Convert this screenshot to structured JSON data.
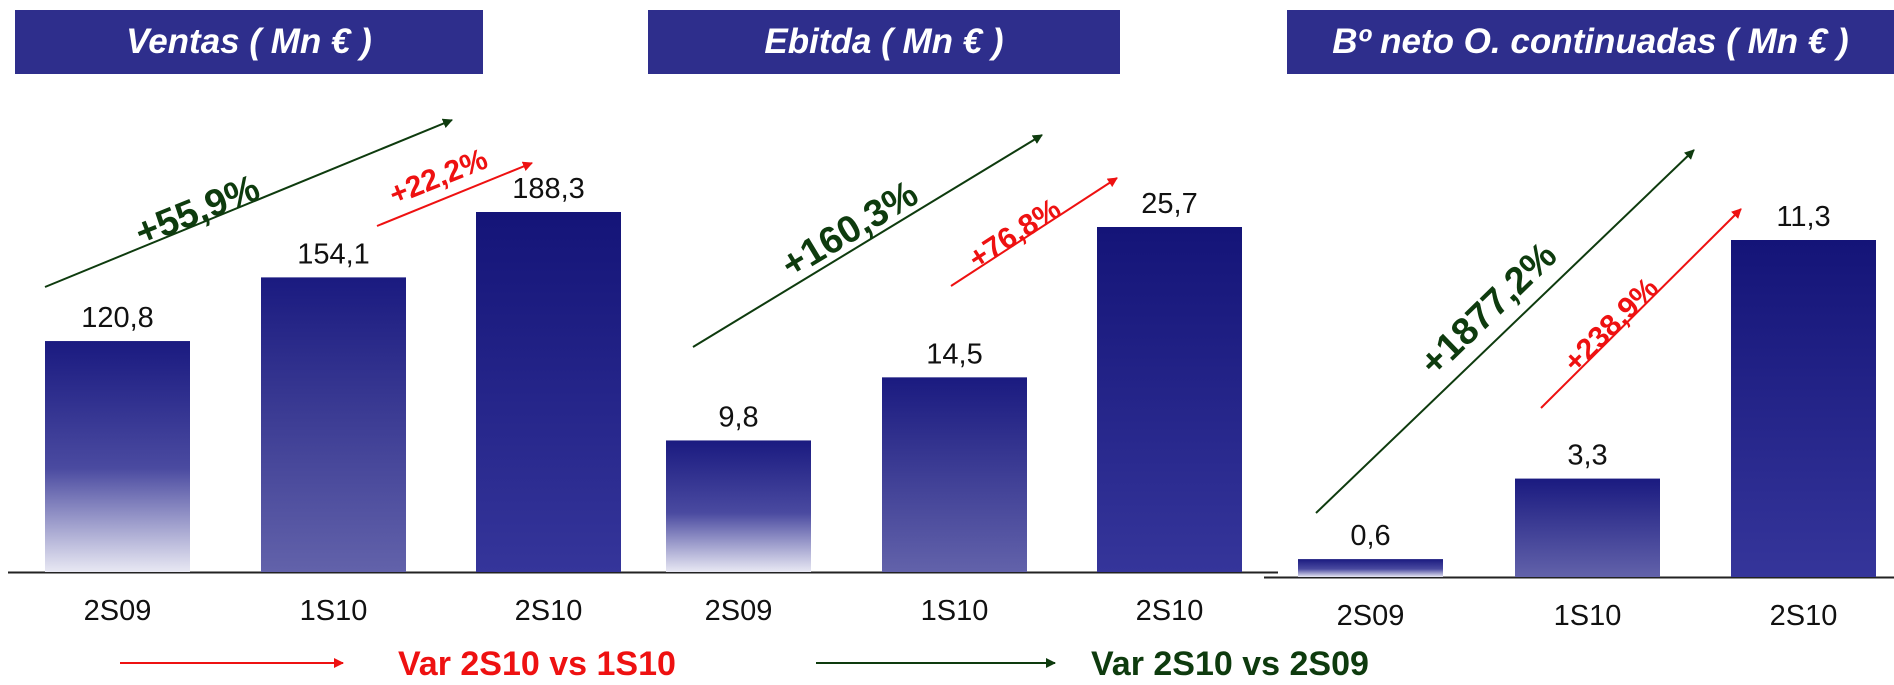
{
  "chart_data": [
    {
      "type": "bar",
      "title": "Ventas ( Mn € )",
      "categories": [
        "2S09",
        "1S10",
        "2S10"
      ],
      "values": [
        120.8,
        154.1,
        188.3
      ],
      "value_labels": [
        "120,8",
        "154,1",
        "188,3"
      ],
      "annotations": [
        {
          "text": "+55,9%",
          "color": "#0e3b0e",
          "comparison": "2S10 vs 2S09"
        },
        {
          "text": "+22,2%",
          "color": "#ee1111",
          "comparison": "2S10 vs 1S10"
        }
      ]
    },
    {
      "type": "bar",
      "title": "Ebitda ( Mn € )",
      "categories": [
        "2S09",
        "1S10",
        "2S10"
      ],
      "values": [
        9.8,
        14.5,
        25.7
      ],
      "value_labels": [
        "9,8",
        "14,5",
        "25,7"
      ],
      "annotations": [
        {
          "text": "+160,3%",
          "color": "#0e3b0e",
          "comparison": "2S10 vs 2S09"
        },
        {
          "text": "+76,8%",
          "color": "#ee1111",
          "comparison": "2S10 vs 1S10"
        }
      ]
    },
    {
      "type": "bar",
      "title": "Bº neto O. continuadas ( Mn € )",
      "categories": [
        "2S09",
        "1S10",
        "2S10"
      ],
      "values": [
        0.6,
        3.3,
        11.3
      ],
      "value_labels": [
        "0,6",
        "3,3",
        "11,3"
      ],
      "annotations": [
        {
          "text": "+1877,2%",
          "color": "#0e3b0e",
          "comparison": "2S10 vs 2S09"
        },
        {
          "text": "+238,9%",
          "color": "#ee1111",
          "comparison": "2S10 vs 1S10"
        }
      ]
    }
  ],
  "legend": [
    {
      "label": "Var 2S10 vs 1S10",
      "color": "#ee1111"
    },
    {
      "label": "Var 2S10 vs  2S09",
      "color": "#0e3b0e"
    }
  ],
  "colors": {
    "header_bg": "#2e2e8c",
    "bar_dark": "#1a1a80",
    "bar_light": "#e6e6f2",
    "green": "#0e3b0e",
    "red": "#ee1111"
  }
}
